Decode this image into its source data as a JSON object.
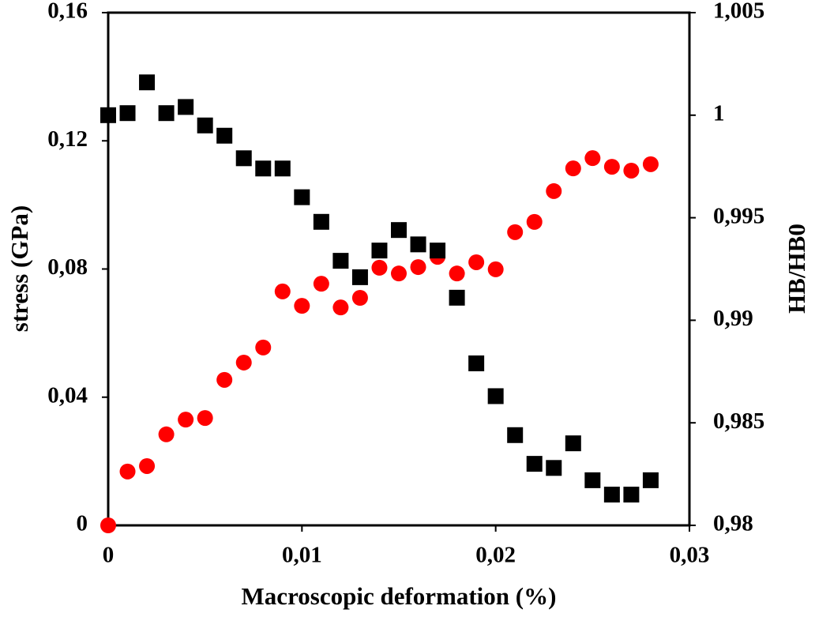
{
  "chart_data": {
    "type": "scatter",
    "x_label": "Macroscopic deformation (%)",
    "y_label": "stress (GPa)",
    "y2_label": "HB/HB0",
    "x": [
      0,
      0.001,
      0.002,
      0.003,
      0.004,
      0.005,
      0.006,
      0.007,
      0.008,
      0.009,
      0.01,
      0.011,
      0.012,
      0.013,
      0.014,
      0.015,
      0.016,
      0.017,
      0.018,
      0.019,
      0.02,
      0.021,
      0.022,
      0.023,
      0.024,
      0.025,
      0.026,
      0.027,
      0.028
    ],
    "series": [
      {
        "color": "#ff0000",
        "marker": "circle",
        "axis": "y",
        "values": [
          0,
          0.0168,
          0.0185,
          0.0284,
          0.033,
          0.0335,
          0.0454,
          0.0508,
          0.0555,
          0.073,
          0.0685,
          0.0754,
          0.068,
          0.071,
          0.0804,
          0.0786,
          0.0806,
          0.0838,
          0.0786,
          0.0821,
          0.0799,
          0.0915,
          0.0947,
          0.1043,
          0.1114,
          0.1146,
          0.1119,
          0.1107,
          0.1127
        ]
      },
      {
        "color": "#000000",
        "marker": "square",
        "axis": "y2",
        "values": [
          1.0,
          1.0001,
          1.0016,
          1.0001,
          1.0004,
          0.9995,
          0.999,
          0.9979,
          0.9974,
          0.9974,
          0.996,
          0.9948,
          0.9929,
          0.9921,
          0.9934,
          0.9944,
          0.9937,
          0.9934,
          0.9911,
          0.9879,
          0.9863,
          0.9844,
          0.983,
          0.9828,
          0.984,
          0.9822,
          0.9815,
          0.9815,
          0.9822
        ]
      }
    ],
    "xlim": [
      0,
      0.03
    ],
    "xticks": [
      0,
      {
        "value": 0.01,
        "label": "0,01"
      },
      {
        "value": 0.02,
        "label": "0,02"
      },
      {
        "value": 0.03,
        "label": "0,03"
      }
    ],
    "ylim": [
      0,
      0.16
    ],
    "yticks": [
      0,
      {
        "value": 0.04,
        "label": "0,04"
      },
      {
        "value": 0.08,
        "label": "0,08"
      },
      {
        "value": 0.12,
        "label": "0,12"
      },
      {
        "value": 0.16,
        "label": "0,16"
      }
    ],
    "y2lim": [
      0.98,
      1.005
    ],
    "y2ticks": [
      {
        "value": 0.98,
        "label": "0,98"
      },
      {
        "value": 0.985,
        "label": "0,985"
      },
      {
        "value": 0.99,
        "label": "0,99"
      },
      {
        "value": 0.995,
        "label": "0,995"
      },
      1,
      {
        "value": 1.005,
        "label": "1,005"
      }
    ]
  }
}
